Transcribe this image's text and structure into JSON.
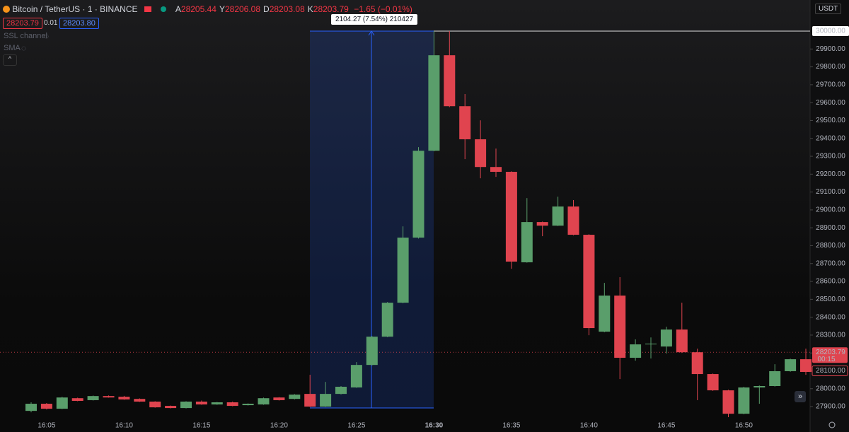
{
  "header": {
    "symbol": "Bitcoin / TetherUS · 1 · BINANCE",
    "ohlc": [
      {
        "key": "A",
        "value": "28205.44"
      },
      {
        "key": "Y",
        "value": "28206.08"
      },
      {
        "key": "D",
        "value": "28203.08"
      },
      {
        "key": "K",
        "value": "28203.79"
      }
    ],
    "change": "−1.65 (−0.01%)",
    "sell": "28203.79",
    "spread": "0.01",
    "buy": "28203.80",
    "indicators": [
      "SSL channel",
      "SMA"
    ]
  },
  "currency": "USDT",
  "chart_data": {
    "type": "candlestick",
    "categories": [
      null,
      "16:05",
      null,
      null,
      null,
      null,
      "16:10",
      null,
      null,
      null,
      null,
      "16:15",
      null,
      null,
      null,
      null,
      "16:20",
      null,
      null,
      null,
      null,
      "16:25",
      null,
      null,
      null,
      null,
      "16:30",
      null,
      null,
      null,
      null,
      "16:35",
      null,
      null,
      null,
      null,
      "16:40",
      null,
      null,
      null,
      null,
      "16:45",
      null,
      null,
      null,
      null,
      "16:50",
      null,
      null,
      null,
      null
    ],
    "open": [
      27876,
      27916,
      27888,
      27947,
      27936,
      27959,
      27955,
      27943,
      27928,
      27904,
      27892,
      27928,
      27912,
      27924,
      27908,
      27912,
      27951,
      27943,
      27971,
      27900,
      27971,
      28007,
      28133,
      28291,
      28481,
      28845,
      29331,
      29865,
      29580,
      29395,
      29240,
      29213,
      28707,
      28932,
      28912,
      29019,
      28861,
      28319,
      28521,
      28173,
      28248,
      28236,
      28331,
      28204,
      28082,
      27991,
      27860,
      28007,
      28015,
      28098,
      28165
    ],
    "high": [
      27924,
      27920,
      27955,
      27950,
      27962,
      27962,
      27960,
      27946,
      27930,
      27906,
      27930,
      27934,
      27926,
      27928,
      27918,
      27950,
      27953,
      27970,
      28078,
      28038,
      28015,
      28149,
      28295,
      28485,
      28908,
      29351,
      30000,
      30000,
      29648,
      29501,
      29343,
      29216,
      29066,
      28935,
      29074,
      29055,
      28864,
      28592,
      28624,
      28276,
      28287,
      28347,
      28481,
      28224,
      28085,
      27994,
      28011,
      28018,
      28137,
      28168,
      28224
    ],
    "low": [
      27868,
      27884,
      27886,
      27930,
      27934,
      27950,
      27938,
      27926,
      27894,
      27890,
      27890,
      27910,
      27910,
      27902,
      27906,
      27910,
      27934,
      27940,
      27898,
      27898,
      27968,
      28005,
      28130,
      28288,
      28478,
      28840,
      29328,
      29575,
      29284,
      29177,
      29185,
      28671,
      28705,
      28853,
      28910,
      28858,
      28299,
      28316,
      28054,
      28157,
      28169,
      28197,
      28200,
      27936,
      27988,
      27841,
      27857,
      27916,
      28012,
      28095,
      28078
    ],
    "close": [
      27916,
      27888,
      27951,
      27932,
      27959,
      27951,
      27940,
      27928,
      27896,
      27892,
      27928,
      27912,
      27924,
      27904,
      27916,
      27947,
      27936,
      27967,
      27900,
      27971,
      28011,
      28133,
      28291,
      28481,
      28845,
      29331,
      29865,
      29580,
      29395,
      29240,
      29213,
      28711,
      28932,
      28912,
      29019,
      28861,
      28339,
      28521,
      28173,
      28248,
      28252,
      28331,
      28204,
      28082,
      27991,
      27860,
      28007,
      28015,
      28098,
      28165,
      28094
    ],
    "up_color": "#5a9e6b",
    "down_color": "#e0444f",
    "ylim": [
      27841,
      30174
    ],
    "yticks": [
      {
        "value": 27900,
        "label": "27900.00"
      },
      {
        "value": 28000,
        "label": "28000.00"
      },
      {
        "value": 28100,
        "label": "28100.00"
      },
      {
        "value": 28200,
        "label": "28200.00"
      },
      {
        "value": 28300,
        "label": "28300.00"
      },
      {
        "value": 28400,
        "label": "28400.00"
      },
      {
        "value": 28500,
        "label": "28500.00"
      },
      {
        "value": 28600,
        "label": "28600.00"
      },
      {
        "value": 28700,
        "label": "28700.00"
      },
      {
        "value": 28800,
        "label": "28800.00"
      },
      {
        "value": 28900,
        "label": "28900.00"
      },
      {
        "value": 29000,
        "label": "29000.00"
      },
      {
        "value": 29100,
        "label": "29100.00"
      },
      {
        "value": 29200,
        "label": "29200.00"
      },
      {
        "value": 29300,
        "label": "29300.00"
      },
      {
        "value": 29400,
        "label": "29400.00"
      },
      {
        "value": 29500,
        "label": "29500.00"
      },
      {
        "value": 29600,
        "label": "29600.00"
      },
      {
        "value": 29700,
        "label": "29700.00"
      },
      {
        "value": 29800,
        "label": "29800.00"
      },
      {
        "value": 29900,
        "label": "29900.00"
      }
    ],
    "level": {
      "value": 30000,
      "label": "30000.00"
    },
    "last_price": {
      "value": 28203.79,
      "label": "28203.79",
      "countdown": "00:15"
    },
    "marker_price": {
      "value": 28100,
      "label": "28100.00"
    },
    "measure": {
      "label": "2104.27 (7.54%) 210427"
    }
  }
}
